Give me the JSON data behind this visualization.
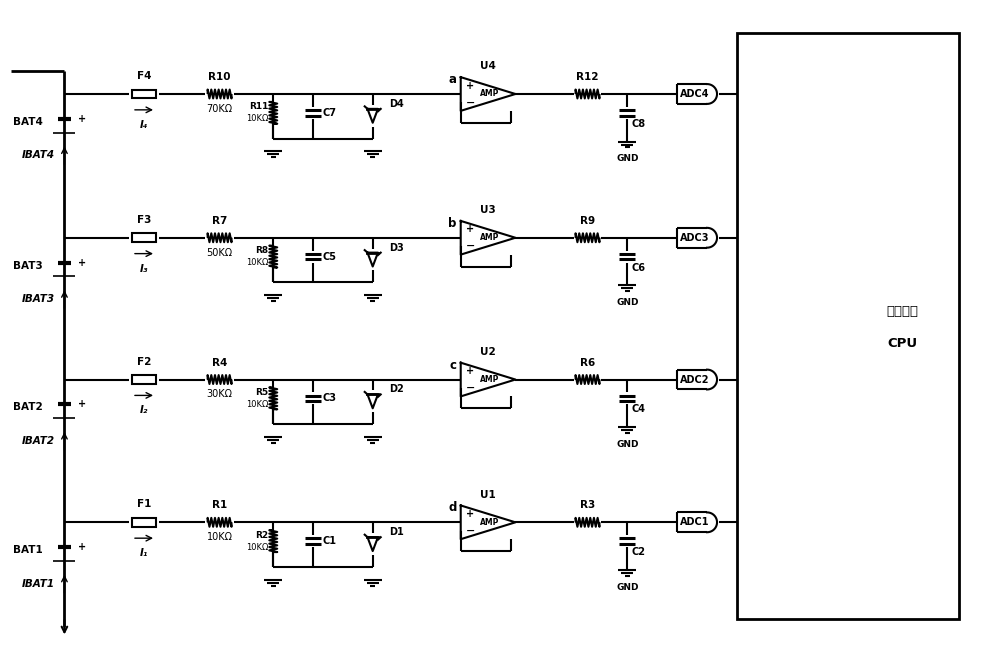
{
  "background_color": "#ffffff",
  "line_color": "#000000",
  "fig_width": 10.0,
  "fig_height": 6.52,
  "rows": [
    {
      "y": 5.6,
      "fuse": "F4",
      "i_cur": "I₄",
      "rm": "R10",
      "rv": "70KΩ",
      "rs": "R11",
      "rsv": "10KΩ",
      "cap": "C7",
      "diode": "D4",
      "amp": "U4",
      "ro": "R12",
      "co": "C8",
      "adc": "ADC4",
      "bat": "BAT4",
      "ibat": "IBAT4",
      "la": "a"
    },
    {
      "y": 4.15,
      "fuse": "F3",
      "i_cur": "I₃",
      "rm": "R7",
      "rv": "50KΩ",
      "rs": "R8",
      "rsv": "10KΩ",
      "cap": "C5",
      "diode": "D3",
      "amp": "U3",
      "ro": "R9",
      "co": "C6",
      "adc": "ADC3",
      "bat": "BAT3",
      "ibat": "IBAT3",
      "la": "b"
    },
    {
      "y": 2.72,
      "fuse": "F2",
      "i_cur": "I₂",
      "rm": "R4",
      "rv": "30KΩ",
      "rs": "R5",
      "rsv": "10KΩ",
      "cap": "C3",
      "diode": "D2",
      "amp": "U2",
      "ro": "R6",
      "co": "C4",
      "adc": "ADC2",
      "bat": "BAT2",
      "ibat": "IBAT2",
      "la": "c"
    },
    {
      "y": 1.28,
      "fuse": "F1",
      "i_cur": "I₁",
      "rm": "R1",
      "rv": "10KΩ",
      "rs": "R2",
      "rsv": "10KΩ",
      "cap": "C1",
      "diode": "D1",
      "amp": "U1",
      "ro": "R3",
      "co": "C2",
      "adc": "ADC1",
      "bat": "BAT1",
      "ibat": "IBAT1",
      "la": "d"
    }
  ],
  "cpu_label1": "微处理器",
  "cpu_label2": "CPU"
}
